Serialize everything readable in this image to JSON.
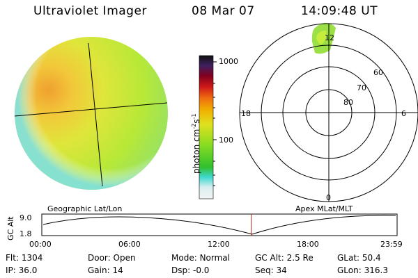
{
  "header": {
    "instrument": "Ultraviolet Imager",
    "date": "08 Mar 07",
    "time": "14:09:48 UT"
  },
  "colorbar": {
    "unit_label": "photon cm",
    "unit_sup1": "-2",
    "unit_mid": "s",
    "unit_sup2": "-1",
    "ticks": [
      "1000",
      "100"
    ]
  },
  "polar_plot": {
    "mlt_labels": {
      "top": "12",
      "left": "18",
      "right": "6",
      "bottom": "0"
    },
    "mlat_labels": [
      "60",
      "70",
      "80"
    ]
  },
  "timeline": {
    "ylabel": "GC Alt",
    "yticks": [
      "9.0",
      "1.8"
    ],
    "left_caption": "Geographic Lat/Lon",
    "right_caption": "Apex MLat/MLT",
    "xticks": [
      "00:00",
      "06:00",
      "12:00",
      "18:00",
      "23:59"
    ],
    "current_fraction": 0.59
  },
  "info": {
    "flt_label": "Flt:",
    "flt_value": "1304",
    "ip_label": "IP:",
    "ip_value": "36.0",
    "door_label": "Door:",
    "door_value": "Open",
    "gain_label": "Gain:",
    "gain_value": "14",
    "mode_label": "Mode:",
    "mode_value": "Normal",
    "dsp_label": "Dsp:",
    "dsp_value": "-0.0",
    "gcalt_label": "GC Alt:",
    "gcalt_value": "2.5 Re",
    "seq_label": "Seq:",
    "seq_value": "34",
    "glat_label": "GLat:",
    "glat_value": "50.4",
    "glon_label": "GLon:",
    "glon_value": "316.3"
  },
  "colors": {
    "marker": "#cc2222",
    "disk_base": "#c8e830"
  }
}
